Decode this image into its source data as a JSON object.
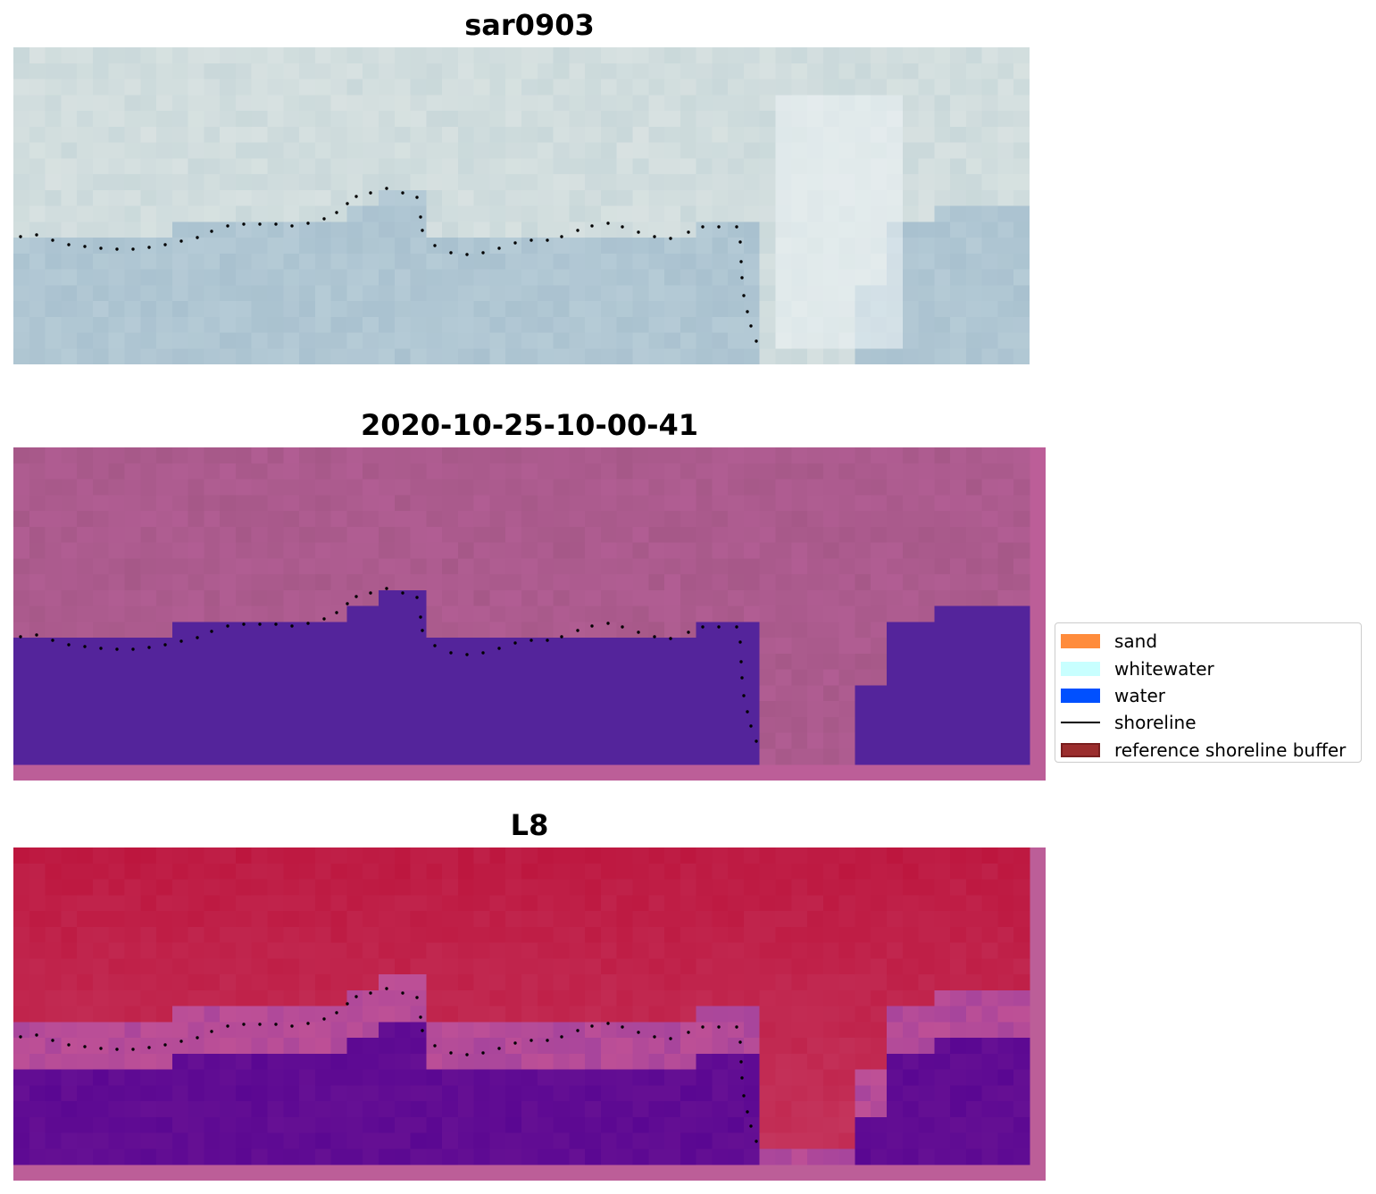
{
  "panels": [
    {
      "title": "sar0903",
      "style": "rgb"
    },
    {
      "title": "2020-10-25-10-00-41",
      "style": "classified"
    },
    {
      "title": "L8",
      "style": "index"
    }
  ],
  "legend": {
    "items": [
      {
        "label": "sand",
        "kind": "patch",
        "color": "#ff8c3c"
      },
      {
        "label": "whitewater",
        "kind": "patch",
        "color": "#c8ffff"
      },
      {
        "label": "water",
        "kind": "patch",
        "color": "#0050ff"
      },
      {
        "label": "shoreline",
        "kind": "line",
        "color": "#000000"
      },
      {
        "label": "reference shoreline buffer",
        "kind": "patch",
        "color": "#9b2d2d",
        "edge": "#7a1e1e"
      }
    ]
  },
  "colors": {
    "rgb_sky": "#c9d8da",
    "rgb_water": "#a9c1cf",
    "classified_land": "#a65888",
    "classified_water": "#54249b",
    "classified_border": "#bc5e98",
    "index_land": "#bd163e",
    "index_water": "#5a0792",
    "index_border": "#bc5e98",
    "shoreline": "#000000"
  }
}
